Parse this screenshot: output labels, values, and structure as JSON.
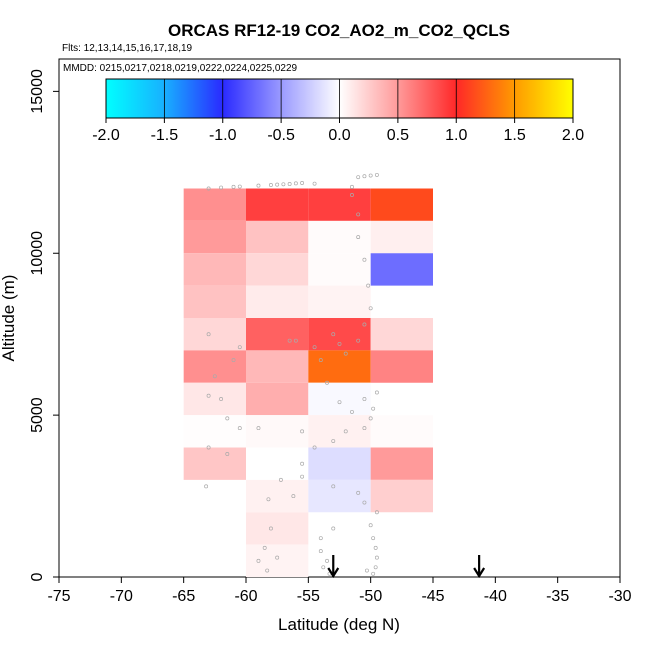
{
  "chart_data": {
    "type": "heatmap",
    "title": "ORCAS RF12-19 CO2_AO2_m_CO2_QCLS",
    "subtitle_flights": "Flts: 12,13,14,15,16,17,18,19",
    "subtitle_dates": "MMDD: 0215,0217,0218,0219,0222,0224,0225,0229",
    "xlabel": "Latitude (deg N)",
    "ylabel": "Altitude (m)",
    "xlim": [
      -75,
      -30
    ],
    "ylim": [
      0,
      16000
    ],
    "x_ticks": [
      -75,
      -70,
      -65,
      -60,
      -55,
      -50,
      -45,
      -40,
      -35,
      -30
    ],
    "y_ticks": [
      0,
      5000,
      10000,
      15000
    ],
    "colorbar": {
      "range": [
        -2.0,
        2.0
      ],
      "ticks": [
        "-2.0",
        "-1.5",
        "-1.0",
        "-0.5",
        "0.0",
        "0.5",
        "1.0",
        "1.5",
        "2.0"
      ]
    },
    "bin_size": {
      "lat": 5,
      "alt": 1000
    },
    "cells": [
      {
        "lat0": -65,
        "alt0": 11000,
        "value": 0.55
      },
      {
        "lat0": -60,
        "alt0": 11000,
        "value": 0.9
      },
      {
        "lat0": -55,
        "alt0": 11000,
        "value": 0.9
      },
      {
        "lat0": -50,
        "alt0": 11000,
        "value": 1.15
      },
      {
        "lat0": -65,
        "alt0": 10000,
        "value": 0.5
      },
      {
        "lat0": -60,
        "alt0": 10000,
        "value": 0.3
      },
      {
        "lat0": -55,
        "alt0": 10000,
        "value": 0.02
      },
      {
        "lat0": -50,
        "alt0": 10000,
        "value": 0.08
      },
      {
        "lat0": -65,
        "alt0": 9000,
        "value": 0.35
      },
      {
        "lat0": -60,
        "alt0": 9000,
        "value": 0.2
      },
      {
        "lat0": -55,
        "alt0": 9000,
        "value": 0.02
      },
      {
        "lat0": -50,
        "alt0": 9000,
        "value": -0.7
      },
      {
        "lat0": -65,
        "alt0": 8000,
        "value": 0.3
      },
      {
        "lat0": -60,
        "alt0": 8000,
        "value": 0.1
      },
      {
        "lat0": -55,
        "alt0": 8000,
        "value": 0.06
      },
      {
        "lat0": -65,
        "alt0": 7000,
        "value": 0.2
      },
      {
        "lat0": -60,
        "alt0": 7000,
        "value": 0.75
      },
      {
        "lat0": -55,
        "alt0": 7000,
        "value": 0.85
      },
      {
        "lat0": -50,
        "alt0": 7000,
        "value": 0.2
      },
      {
        "lat0": -65,
        "alt0": 6000,
        "value": 0.55
      },
      {
        "lat0": -60,
        "alt0": 6000,
        "value": 0.35
      },
      {
        "lat0": -55,
        "alt0": 6000,
        "value": 1.3
      },
      {
        "lat0": -50,
        "alt0": 6000,
        "value": 0.6
      },
      {
        "lat0": -65,
        "alt0": 5000,
        "value": 0.12
      },
      {
        "lat0": -60,
        "alt0": 5000,
        "value": 0.4
      },
      {
        "lat0": -55,
        "alt0": 5000,
        "value": -0.03
      },
      {
        "lat0": -65,
        "alt0": 4000,
        "value": 0.01
      },
      {
        "lat0": -60,
        "alt0": 4000,
        "value": 0.03
      },
      {
        "lat0": -55,
        "alt0": 4000,
        "value": 0.07
      },
      {
        "lat0": -50,
        "alt0": 4000,
        "value": 0.02
      },
      {
        "lat0": -65,
        "alt0": 3000,
        "value": 0.28
      },
      {
        "lat0": -60,
        "alt0": 3000,
        "value": 0.0
      },
      {
        "lat0": -55,
        "alt0": 3000,
        "value": -0.17
      },
      {
        "lat0": -50,
        "alt0": 3000,
        "value": 0.5
      },
      {
        "lat0": -60,
        "alt0": 2000,
        "value": 0.07
      },
      {
        "lat0": -55,
        "alt0": 2000,
        "value": -0.12
      },
      {
        "lat0": -50,
        "alt0": 2000,
        "value": 0.24
      },
      {
        "lat0": -60,
        "alt0": 1000,
        "value": 0.12
      },
      {
        "lat0": -60,
        "alt0": 0,
        "value": 0.06
      }
    ],
    "flight_points": [
      [
        -63.0,
        12000
      ],
      [
        -62.0,
        12030
      ],
      [
        -61.0,
        12050
      ],
      [
        -60.5,
        12060
      ],
      [
        -59.0,
        12090
      ],
      [
        -58.0,
        12110
      ],
      [
        -57.5,
        12120
      ],
      [
        -57.0,
        12130
      ],
      [
        -56.5,
        12140
      ],
      [
        -56.0,
        12160
      ],
      [
        -55.5,
        12170
      ],
      [
        -54.5,
        12150
      ],
      [
        -51.0,
        12350
      ],
      [
        -50.5,
        12380
      ],
      [
        -50.0,
        12400
      ],
      [
        -49.5,
        12420
      ],
      [
        -51.5,
        12050
      ],
      [
        -51.5,
        11800
      ],
      [
        -51.0,
        11200
      ],
      [
        -51.0,
        10500
      ],
      [
        -50.5,
        9800
      ],
      [
        -50.2,
        9000
      ],
      [
        -50.0,
        8300
      ],
      [
        -50.5,
        7800
      ],
      [
        -51.0,
        7300
      ],
      [
        -52.0,
        6900
      ],
      [
        -53.0,
        7500
      ],
      [
        -54.0,
        6700
      ],
      [
        -53.5,
        6000
      ],
      [
        -52.5,
        5400
      ],
      [
        -51.5,
        5100
      ],
      [
        -50.5,
        5500
      ],
      [
        -49.5,
        5700
      ],
      [
        -49.8,
        5200
      ],
      [
        -50.0,
        4900
      ],
      [
        -50.5,
        4600
      ],
      [
        -52.0,
        4500
      ],
      [
        -53.0,
        4200
      ],
      [
        -54.5,
        4000
      ],
      [
        -55.5,
        4500
      ],
      [
        -55.5,
        3500
      ],
      [
        -55.5,
        3100
      ],
      [
        -53.0,
        2800
      ],
      [
        -51.0,
        2600
      ],
      [
        -50.5,
        2300
      ],
      [
        -49.5,
        2000
      ],
      [
        -50.0,
        1600
      ],
      [
        -49.8,
        1200
      ],
      [
        -49.6,
        900
      ],
      [
        -49.5,
        600
      ],
      [
        -49.6,
        300
      ],
      [
        -49.8,
        100
      ],
      [
        -50.3,
        200
      ],
      [
        -53.0,
        1500
      ],
      [
        -54.0,
        1200
      ],
      [
        -54.0,
        800
      ],
      [
        -53.5,
        500
      ],
      [
        -53.8,
        300
      ],
      [
        -53.3,
        100
      ],
      [
        -57.2,
        3000
      ],
      [
        -58.2,
        2400
      ],
      [
        -56.2,
        2500
      ],
      [
        -58.0,
        1500
      ],
      [
        -58.5,
        900
      ],
      [
        -57.5,
        600
      ],
      [
        -59.0,
        500
      ],
      [
        -58.3,
        200
      ],
      [
        -59.0,
        4600
      ],
      [
        -60.5,
        4600
      ],
      [
        -61.5,
        4900
      ],
      [
        -62.0,
        5500
      ],
      [
        -63.0,
        5600
      ],
      [
        -62.5,
        6200
      ],
      [
        -63.0,
        7500
      ],
      [
        -60.5,
        7100
      ],
      [
        -61.0,
        6700
      ],
      [
        -56.0,
        7300
      ],
      [
        -56.5,
        7300
      ],
      [
        -61.5,
        3800
      ],
      [
        -63.0,
        4000
      ],
      [
        -63.2,
        2800
      ],
      [
        -54.5,
        7100
      ],
      [
        -52.5,
        7200
      ]
    ],
    "arrows": [
      -53,
      -41.3
    ]
  }
}
